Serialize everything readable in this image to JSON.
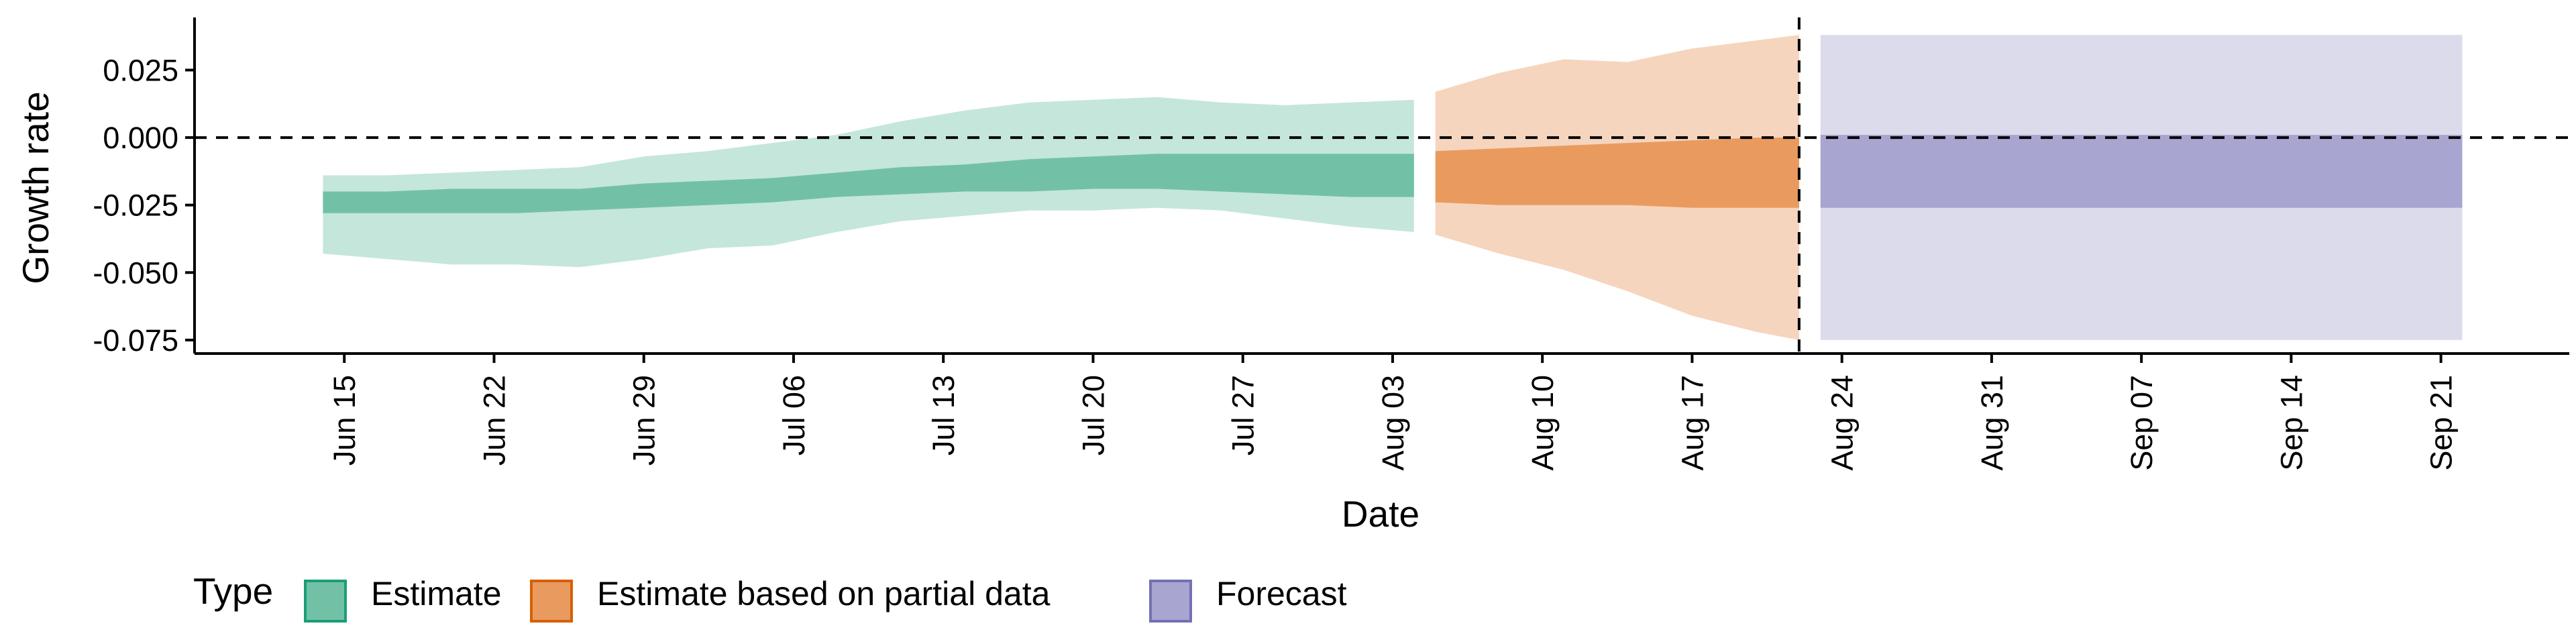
{
  "chart_data": {
    "type": "area",
    "xlabel": "Date",
    "ylabel": "Growth rate",
    "ylim": [
      -0.08,
      0.044
    ],
    "xlim": [
      "2021-06-08",
      "2021-09-27"
    ],
    "y_ticks": [
      {
        "value": 0.025,
        "label": "0.025"
      },
      {
        "value": 0.0,
        "label": "0.000"
      },
      {
        "value": -0.025,
        "label": "-0.025"
      },
      {
        "value": -0.05,
        "label": "-0.050"
      },
      {
        "value": -0.075,
        "label": "-0.075"
      }
    ],
    "x_ticks": [
      {
        "date": "2021-06-15",
        "label": "Jun 15"
      },
      {
        "date": "2021-06-22",
        "label": "Jun 22"
      },
      {
        "date": "2021-06-29",
        "label": "Jun 29"
      },
      {
        "date": "2021-07-06",
        "label": "Jul 06"
      },
      {
        "date": "2021-07-13",
        "label": "Jul 13"
      },
      {
        "date": "2021-07-20",
        "label": "Jul 20"
      },
      {
        "date": "2021-07-27",
        "label": "Jul 27"
      },
      {
        "date": "2021-08-03",
        "label": "Aug 03"
      },
      {
        "date": "2021-08-10",
        "label": "Aug 10"
      },
      {
        "date": "2021-08-17",
        "label": "Aug 17"
      },
      {
        "date": "2021-08-24",
        "label": "Aug 24"
      },
      {
        "date": "2021-08-31",
        "label": "Aug 31"
      },
      {
        "date": "2021-09-07",
        "label": "Sep 07"
      },
      {
        "date": "2021-09-14",
        "label": "Sep 14"
      },
      {
        "date": "2021-09-21",
        "label": "Sep 21"
      }
    ],
    "hline": 0.0,
    "vline": "2021-08-22",
    "legend": {
      "title": "Type",
      "position": "bottom-left",
      "entries": [
        {
          "label": "Estimate",
          "fill": "#72C1A7",
          "border": "#1B9E77"
        },
        {
          "label": "Estimate based on partial data",
          "fill": "#E99B5F",
          "border": "#D95F02"
        },
        {
          "label": "Forecast",
          "fill": "#A8A5D0",
          "border": "#7570B3"
        }
      ]
    },
    "series": [
      {
        "name": "Estimate",
        "outer_color": "#C5E6DB",
        "inner_color": "#72C1A7",
        "points": [
          {
            "date": "2021-06-14",
            "lo90": -0.043,
            "lo50": -0.028,
            "hi50": -0.02,
            "hi90": -0.014
          },
          {
            "date": "2021-06-17",
            "lo90": -0.045,
            "lo50": -0.028,
            "hi50": -0.02,
            "hi90": -0.014
          },
          {
            "date": "2021-06-20",
            "lo90": -0.047,
            "lo50": -0.028,
            "hi50": -0.019,
            "hi90": -0.013
          },
          {
            "date": "2021-06-23",
            "lo90": -0.047,
            "lo50": -0.028,
            "hi50": -0.019,
            "hi90": -0.012
          },
          {
            "date": "2021-06-26",
            "lo90": -0.048,
            "lo50": -0.027,
            "hi50": -0.019,
            "hi90": -0.011
          },
          {
            "date": "2021-06-29",
            "lo90": -0.045,
            "lo50": -0.026,
            "hi50": -0.017,
            "hi90": -0.007
          },
          {
            "date": "2021-07-02",
            "lo90": -0.041,
            "lo50": -0.025,
            "hi50": -0.016,
            "hi90": -0.005
          },
          {
            "date": "2021-07-05",
            "lo90": -0.04,
            "lo50": -0.024,
            "hi50": -0.015,
            "hi90": -0.002
          },
          {
            "date": "2021-07-08",
            "lo90": -0.035,
            "lo50": -0.022,
            "hi50": -0.013,
            "hi90": 0.001
          },
          {
            "date": "2021-07-11",
            "lo90": -0.031,
            "lo50": -0.021,
            "hi50": -0.011,
            "hi90": 0.006
          },
          {
            "date": "2021-07-14",
            "lo90": -0.029,
            "lo50": -0.02,
            "hi50": -0.01,
            "hi90": 0.01
          },
          {
            "date": "2021-07-17",
            "lo90": -0.027,
            "lo50": -0.02,
            "hi50": -0.008,
            "hi90": 0.013
          },
          {
            "date": "2021-07-20",
            "lo90": -0.027,
            "lo50": -0.019,
            "hi50": -0.007,
            "hi90": 0.014
          },
          {
            "date": "2021-07-23",
            "lo90": -0.026,
            "lo50": -0.019,
            "hi50": -0.006,
            "hi90": 0.015
          },
          {
            "date": "2021-07-26",
            "lo90": -0.027,
            "lo50": -0.02,
            "hi50": -0.006,
            "hi90": 0.013
          },
          {
            "date": "2021-07-29",
            "lo90": -0.03,
            "lo50": -0.021,
            "hi50": -0.006,
            "hi90": 0.012
          },
          {
            "date": "2021-08-01",
            "lo90": -0.033,
            "lo50": -0.022,
            "hi50": -0.006,
            "hi90": 0.013
          },
          {
            "date": "2021-08-04",
            "lo90": -0.035,
            "lo50": -0.022,
            "hi50": -0.006,
            "hi90": 0.014
          }
        ]
      },
      {
        "name": "Estimate based on partial data",
        "outer_color": "#F6D5BE",
        "inner_color": "#E99B5F",
        "points": [
          {
            "date": "2021-08-05",
            "lo90": -0.036,
            "lo50": -0.024,
            "hi50": -0.005,
            "hi90": 0.017
          },
          {
            "date": "2021-08-08",
            "lo90": -0.043,
            "lo50": -0.025,
            "hi50": -0.004,
            "hi90": 0.024
          },
          {
            "date": "2021-08-11",
            "lo90": -0.049,
            "lo50": -0.025,
            "hi50": -0.003,
            "hi90": 0.029
          },
          {
            "date": "2021-08-14",
            "lo90": -0.057,
            "lo50": -0.025,
            "hi50": -0.002,
            "hi90": 0.028
          },
          {
            "date": "2021-08-17",
            "lo90": -0.066,
            "lo50": -0.026,
            "hi50": -0.001,
            "hi90": 0.033
          },
          {
            "date": "2021-08-20",
            "lo90": -0.072,
            "lo50": -0.026,
            "hi50": 0.0,
            "hi90": 0.036
          },
          {
            "date": "2021-08-22",
            "lo90": -0.075,
            "lo50": -0.026,
            "hi50": 0.0,
            "hi90": 0.038
          }
        ]
      },
      {
        "name": "Forecast",
        "outer_color": "#DCDBEC",
        "inner_color": "#A8A5D0",
        "points": [
          {
            "date": "2021-08-23",
            "lo90": -0.075,
            "lo50": -0.026,
            "hi50": 0.001,
            "hi90": 0.038
          },
          {
            "date": "2021-09-22",
            "lo90": -0.075,
            "lo50": -0.026,
            "hi50": 0.001,
            "hi90": 0.038
          }
        ]
      }
    ]
  }
}
